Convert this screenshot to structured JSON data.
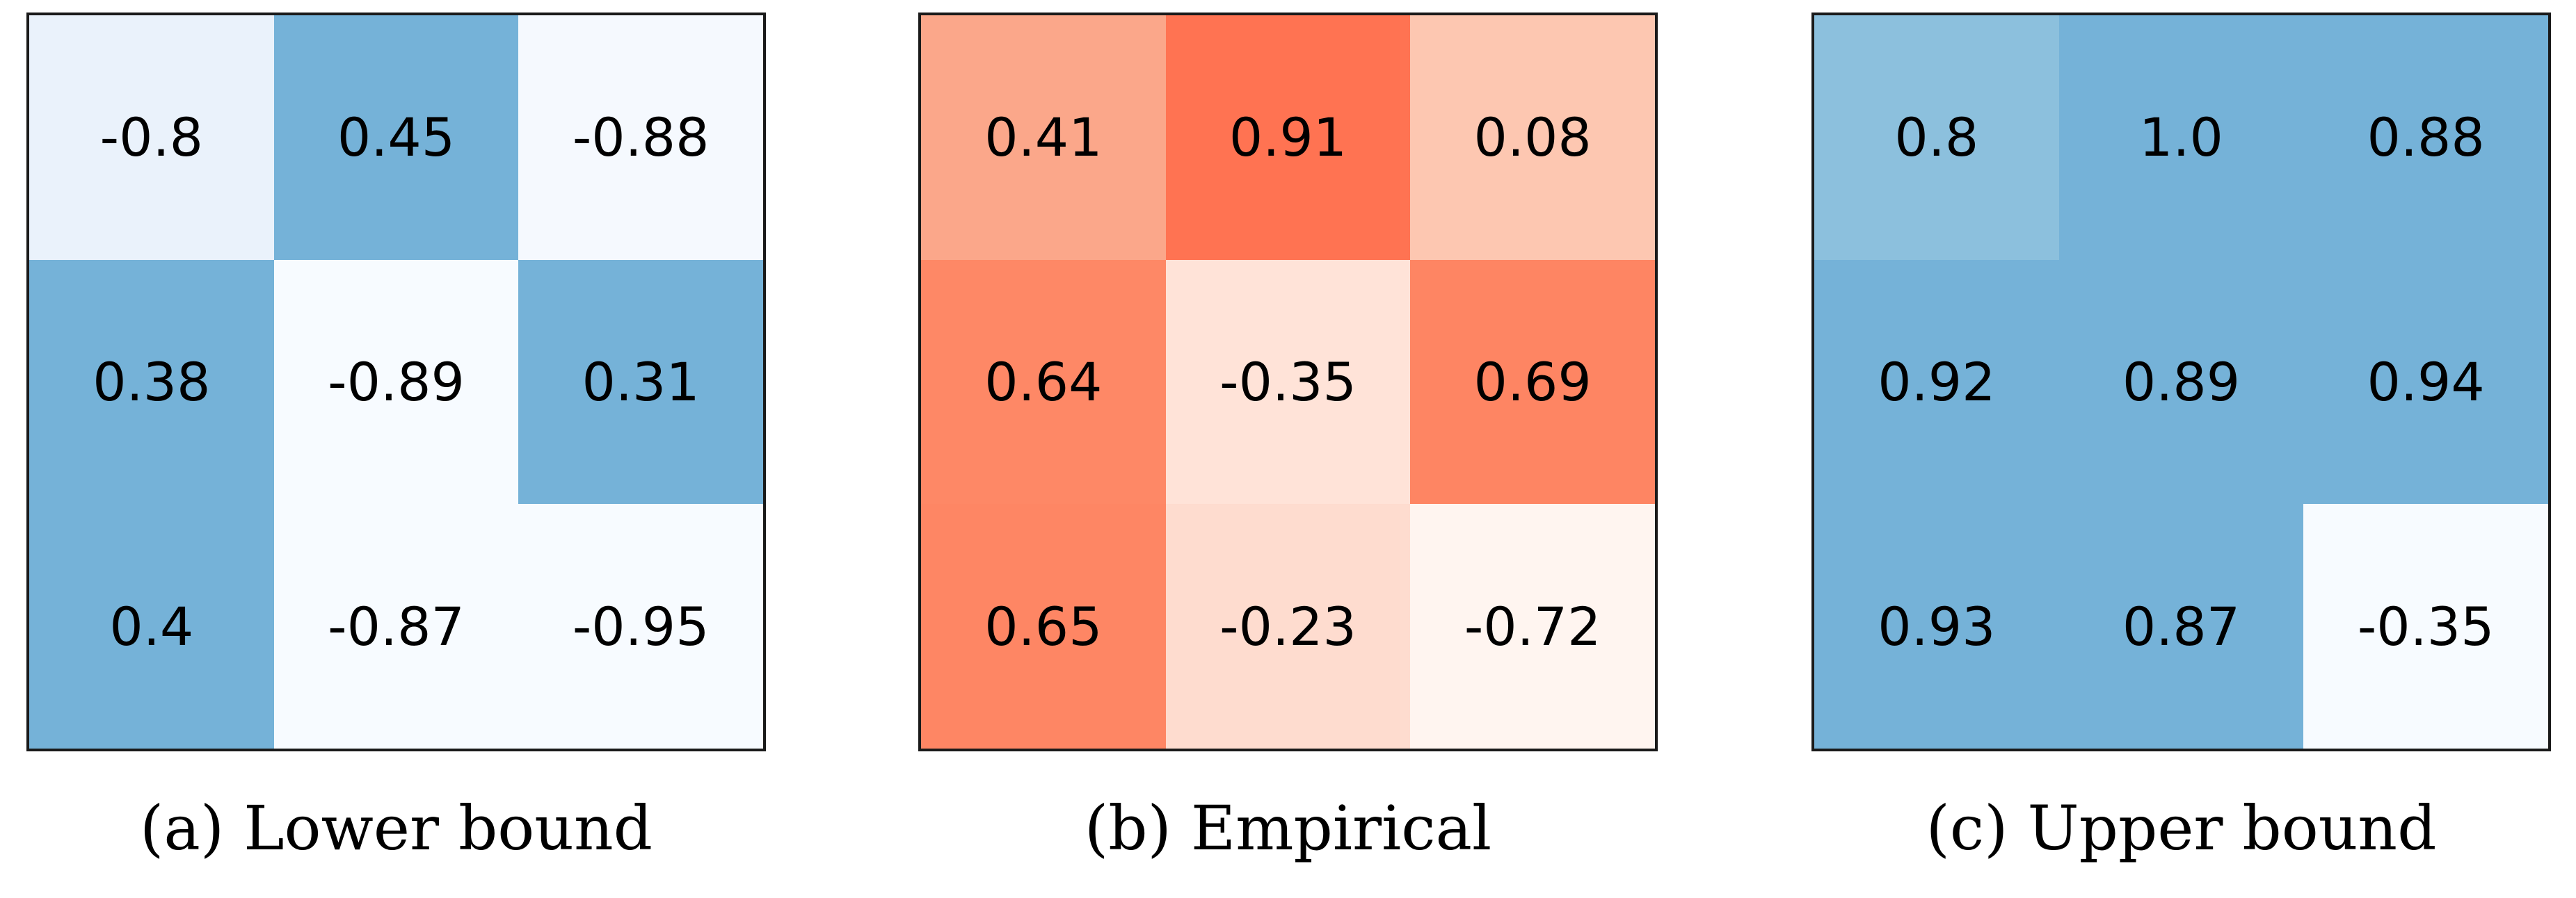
{
  "chart_data": [
    {
      "type": "heatmap",
      "caption": "(a) Lower bound",
      "colormap": "Blues",
      "rows": 3,
      "cols": 3,
      "values": [
        [
          -0.8,
          0.45,
          -0.88
        ],
        [
          0.38,
          -0.89,
          0.31
        ],
        [
          0.4,
          -0.87,
          -0.95
        ]
      ],
      "labels": [
        [
          "-0.8",
          "0.45",
          "-0.88"
        ],
        [
          "0.38",
          "-0.89",
          "0.31"
        ],
        [
          "0.4",
          "-0.87",
          "-0.95"
        ]
      ],
      "cell_colors": [
        [
          "#eaf2fb",
          "#75b2d8",
          "#f5f9fe"
        ],
        [
          "#75b2d8",
          "#f7fbff",
          "#75b2d8"
        ],
        [
          "#75b2d8",
          "#f7fbff",
          "#f7fbff"
        ]
      ]
    },
    {
      "type": "heatmap",
      "caption": "(b) Empirical",
      "colormap": "Reds",
      "rows": 3,
      "cols": 3,
      "values": [
        [
          0.41,
          0.91,
          0.08
        ],
        [
          0.64,
          -0.35,
          0.69
        ],
        [
          0.65,
          -0.23,
          -0.72
        ]
      ],
      "labels": [
        [
          "0.41",
          "0.91",
          "0.08"
        ],
        [
          "0.64",
          "-0.35",
          "0.69"
        ],
        [
          "0.65",
          "-0.23",
          "-0.72"
        ]
      ],
      "cell_colors": [
        [
          "#fba78a",
          "#ff7352",
          "#fdc7b1"
        ],
        [
          "#fe8866",
          "#ffe3d8",
          "#fe8563"
        ],
        [
          "#fe8664",
          "#fedccf",
          "#fff5f0"
        ]
      ]
    },
    {
      "type": "heatmap",
      "caption": "(c) Upper bound",
      "colormap": "Blues",
      "rows": 3,
      "cols": 3,
      "values": [
        [
          0.8,
          1.0,
          0.88
        ],
        [
          0.92,
          0.89,
          0.94
        ],
        [
          0.93,
          0.87,
          -0.35
        ]
      ],
      "labels": [
        [
          "0.8",
          "1.0",
          "0.88"
        ],
        [
          "0.92",
          "0.89",
          "0.94"
        ],
        [
          "0.93",
          "0.87",
          "-0.35"
        ]
      ],
      "cell_colors": [
        [
          "#8cc0dd",
          "#75b2d8",
          "#75b2d8"
        ],
        [
          "#75b2d8",
          "#75b2d8",
          "#75b2d8"
        ],
        [
          "#75b2d8",
          "#75b2d8",
          "#f7fbff"
        ]
      ]
    }
  ]
}
